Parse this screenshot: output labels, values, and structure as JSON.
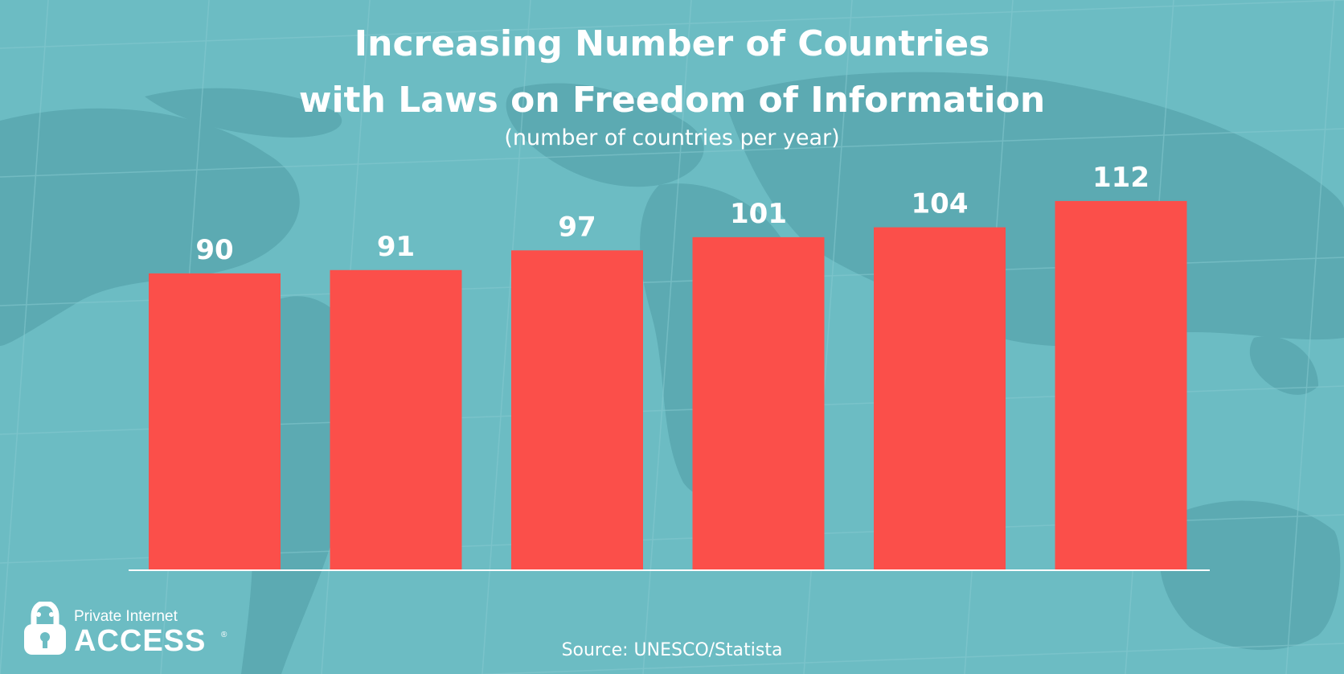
{
  "chart_data": {
    "type": "bar",
    "title_line1": "Increasing Number of Countries",
    "title_line2": "with Laws on Freedom of Information",
    "subtitle": "(number of countries per year)",
    "categories": [
      "",
      "",
      "",
      "",
      "",
      ""
    ],
    "values": [
      90,
      91,
      97,
      101,
      104,
      112
    ],
    "value_labels": [
      "90",
      "91",
      "97",
      "101",
      "104",
      "112"
    ],
    "xlabel": "",
    "ylabel": "",
    "ylim": [
      0,
      112
    ],
    "grid": false,
    "legend": "none",
    "bar_color": "#fb4f4a",
    "axis_color": "#ffffff",
    "source": "Source: UNESCO/Statista"
  },
  "background": {
    "base_color": "#6cbcc3",
    "map_color": "#5ba9b1",
    "grid_color": "#82c8ce"
  },
  "logo": {
    "icon": "padlock-icon",
    "line1": "Private Internet",
    "line2": "ACCESS",
    "mark": "®"
  }
}
